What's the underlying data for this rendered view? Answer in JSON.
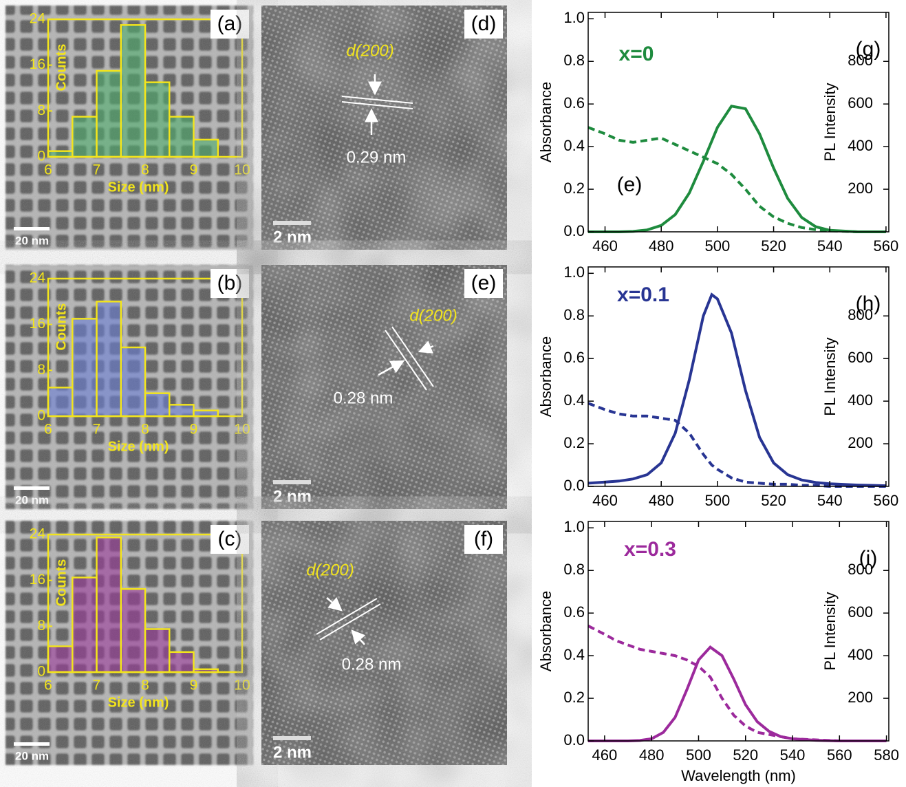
{
  "chart_data": [
    {
      "type": "histogram",
      "label": "(a)",
      "scale_bar": "20 nm",
      "xlabel": "Size (nm)",
      "ylabel": "Counts",
      "bins": [
        6,
        6.5,
        7,
        7.5,
        8,
        8.5,
        9,
        9.5
      ],
      "values": [
        1,
        7,
        15,
        23,
        13,
        7,
        3
      ],
      "color": "#4fae6c",
      "edge_color": "#f2e41c",
      "xlim": [
        6,
        10
      ],
      "ylim": [
        0,
        24
      ],
      "xticks": [
        6,
        7,
        8,
        9,
        10
      ],
      "yticks": [
        0,
        8,
        16,
        24
      ]
    },
    {
      "type": "histogram",
      "label": "(b)",
      "scale_bar": "20 nm",
      "xlabel": "Size (nm)",
      "ylabel": "Counts",
      "bins": [
        6,
        6.5,
        7,
        7.5,
        8,
        8.5,
        9,
        9.5
      ],
      "values": [
        5,
        17,
        20,
        12,
        4,
        2,
        1
      ],
      "color": "#6b7fd6",
      "edge_color": "#f2e41c",
      "xlim": [
        6,
        10
      ],
      "ylim": [
        0,
        24
      ],
      "xticks": [
        6,
        7,
        8,
        9,
        10
      ],
      "yticks": [
        0,
        8,
        16,
        24
      ]
    },
    {
      "type": "histogram",
      "label": "(c)",
      "scale_bar": "20 nm",
      "xlabel": "Size (nm)",
      "ylabel": "Counts",
      "bins": [
        6,
        6.5,
        7,
        7.5,
        8,
        8.5,
        9,
        9.5
      ],
      "values": [
        4.5,
        16.5,
        23.5,
        14.5,
        7.5,
        3.5,
        0.5
      ],
      "color": "#9b3a9b",
      "edge_color": "#f2e41c",
      "xlim": [
        6,
        10
      ],
      "ylim": [
        0,
        24
      ],
      "xticks": [
        6,
        7,
        8,
        9,
        10
      ],
      "yticks": [
        0,
        8,
        16,
        24
      ]
    },
    {
      "type": "line",
      "label": "(g)",
      "annotation": "x=0",
      "inset_label": "(e)",
      "ylabel": "Absorbance",
      "y2label": "PL Intensity",
      "x": [
        454,
        460,
        465,
        470,
        475,
        480,
        485,
        490,
        495,
        500,
        505,
        510,
        515,
        520,
        525,
        530,
        535,
        540,
        550,
        560
      ],
      "series": [
        {
          "color": "#1e8b3e",
          "style": "dashed",
          "values": [
            0.49,
            0.46,
            0.43,
            0.42,
            0.43,
            0.44,
            0.41,
            0.38,
            0.35,
            0.32,
            0.27,
            0.2,
            0.12,
            0.07,
            0.04,
            0.02,
            0.01,
            0.005,
            0,
            0
          ]
        },
        {
          "color": "#1e8b3e",
          "style": "solid",
          "axis": "y2",
          "values": [
            0,
            0,
            0,
            2,
            9,
            30,
            81,
            182,
            331,
            490,
            590,
            578,
            460,
            299,
            157,
            67,
            24,
            7,
            0,
            0
          ]
        }
      ],
      "xlim": [
        454,
        561
      ],
      "ylim": [
        0,
        1.03
      ],
      "y2lim": [
        0,
        1030
      ],
      "xticks": [
        460,
        480,
        500,
        520,
        540,
        560
      ],
      "yticks": [
        {
          "value": 0,
          "label": "0.0"
        },
        0.2,
        0.4,
        0.6,
        0.8,
        {
          "value": 1,
          "label": "1.0"
        }
      ],
      "y2ticks": [
        200,
        400,
        600,
        800
      ]
    },
    {
      "type": "line",
      "label": "(h)",
      "annotation": "x=0.1",
      "ylabel": "Absorbance",
      "y2label": "PL Intensity",
      "x": [
        454,
        460,
        465,
        470,
        475,
        480,
        485,
        490,
        495,
        498,
        500,
        505,
        510,
        515,
        520,
        525,
        530,
        535,
        540,
        550,
        560
      ],
      "series": [
        {
          "color": "#283593",
          "style": "dashed",
          "values": [
            0.39,
            0.36,
            0.34,
            0.33,
            0.33,
            0.32,
            0.31,
            0.25,
            0.15,
            0.1,
            0.08,
            0.04,
            0.02,
            0.015,
            0.01,
            0.01,
            0.005,
            0.005,
            0,
            0,
            0
          ]
        },
        {
          "color": "#283593",
          "style": "solid",
          "axis": "y2",
          "values": [
            15,
            20,
            25,
            35,
            55,
            110,
            250,
            500,
            800,
            900,
            880,
            720,
            450,
            230,
            110,
            55,
            30,
            18,
            12,
            6,
            3
          ]
        }
      ],
      "xlim": [
        454,
        561
      ],
      "ylim": [
        0,
        1.03
      ],
      "y2lim": [
        0,
        1030
      ],
      "xticks": [
        460,
        480,
        500,
        520,
        540,
        560
      ],
      "yticks": [
        {
          "value": 0,
          "label": "0.0"
        },
        0.2,
        0.4,
        0.6,
        0.8,
        {
          "value": 1,
          "label": "1.0"
        }
      ],
      "y2ticks": [
        200,
        400,
        600,
        800
      ]
    },
    {
      "type": "line",
      "label": "(i)",
      "annotation": "x=0.3",
      "ylabel": "Absorbance",
      "y2label": "PL Intensity",
      "xlabel": "Wavelength (nm)",
      "x": [
        453,
        460,
        465,
        470,
        475,
        480,
        485,
        490,
        495,
        500,
        505,
        510,
        515,
        520,
        525,
        530,
        535,
        540,
        550,
        560,
        570,
        580
      ],
      "series": [
        {
          "color": "#9c2a9c",
          "style": "dashed",
          "values": [
            0.54,
            0.5,
            0.47,
            0.45,
            0.43,
            0.42,
            0.41,
            0.4,
            0.38,
            0.35,
            0.3,
            0.2,
            0.12,
            0.07,
            0.04,
            0.03,
            0.02,
            0.01,
            0.005,
            0,
            0,
            0
          ]
        },
        {
          "color": "#9c2a9c",
          "style": "solid",
          "axis": "y2",
          "values": [
            0,
            0,
            0,
            0,
            2,
            10,
            40,
            110,
            240,
            380,
            440,
            400,
            290,
            170,
            90,
            45,
            20,
            10,
            3,
            0,
            0,
            0
          ]
        }
      ],
      "xlim": [
        453,
        581
      ],
      "ylim": [
        0,
        1.03
      ],
      "y2lim": [
        0,
        1030
      ],
      "xticks": [
        460,
        480,
        500,
        520,
        540,
        560,
        580
      ],
      "yticks": [
        {
          "value": 0,
          "label": "0.0"
        },
        0.2,
        0.4,
        0.6,
        0.8,
        {
          "value": 1,
          "label": "1.0"
        }
      ],
      "y2ticks": [
        200,
        400,
        600,
        800
      ]
    }
  ],
  "images": [
    {
      "label": "(d)",
      "plane": "d(200)",
      "spacing": "0.29 nm",
      "scale_bar": "2 nm"
    },
    {
      "label": "(e)",
      "plane": "d(200)",
      "spacing": "0.28 nm",
      "scale_bar": "2 nm"
    },
    {
      "label": "(f)",
      "plane": "d(200)",
      "spacing": "0.28 nm",
      "scale_bar": "2 nm"
    }
  ]
}
